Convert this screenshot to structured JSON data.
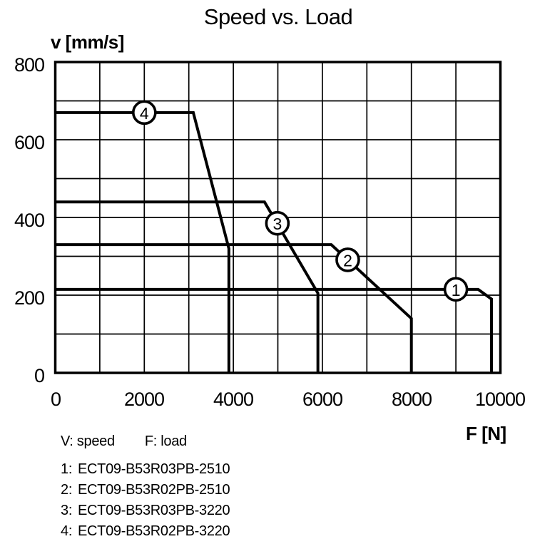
{
  "title": "Speed vs. Load",
  "notes": {
    "v": "V: speed",
    "f": "F: load"
  },
  "chart_data": {
    "type": "line",
    "title": "Speed vs. Load",
    "xlabel": "F [N]",
    "ylabel": "v [mm/s]",
    "xlim": [
      0,
      10000
    ],
    "ylim": [
      0,
      800
    ],
    "x_grid_step": 1000,
    "y_grid_step": 100,
    "grid": true,
    "legend_position": "below",
    "x_tick_labels": [
      "0",
      "2000",
      "4000",
      "6000",
      "8000",
      "10000"
    ],
    "y_tick_labels": [
      "800",
      "600",
      "400",
      "200",
      "0"
    ],
    "line_color": "#000000",
    "background_color": "#ffffff",
    "series": [
      {
        "prefix": "1:",
        "name": "ECT09-B53R03PB-2510",
        "marker_label": "1",
        "marker_at": [
          9000,
          215
        ],
        "points": [
          [
            0,
            215
          ],
          [
            9500,
            215
          ],
          [
            9800,
            190
          ],
          [
            9800,
            0
          ]
        ]
      },
      {
        "prefix": "2:",
        "name": "ECT09-B53R02PB-2510",
        "marker_label": "2",
        "marker_at": [
          6570,
          291
        ],
        "points": [
          [
            0,
            330
          ],
          [
            6200,
            330
          ],
          [
            8000,
            140
          ],
          [
            8000,
            0
          ]
        ]
      },
      {
        "prefix": "3:",
        "name": "ECT09-B53R03PB-3220",
        "marker_label": "3",
        "marker_at": [
          4990,
          385
        ],
        "points": [
          [
            0,
            440
          ],
          [
            4700,
            440
          ],
          [
            5900,
            205
          ],
          [
            5900,
            0
          ]
        ]
      },
      {
        "prefix": "4:",
        "name": "ECT09-B53R02PB-3220",
        "marker_label": "4",
        "marker_at": [
          2000,
          670
        ],
        "points": [
          [
            0,
            670
          ],
          [
            3100,
            670
          ],
          [
            3900,
            320
          ],
          [
            3900,
            0
          ]
        ]
      }
    ]
  }
}
